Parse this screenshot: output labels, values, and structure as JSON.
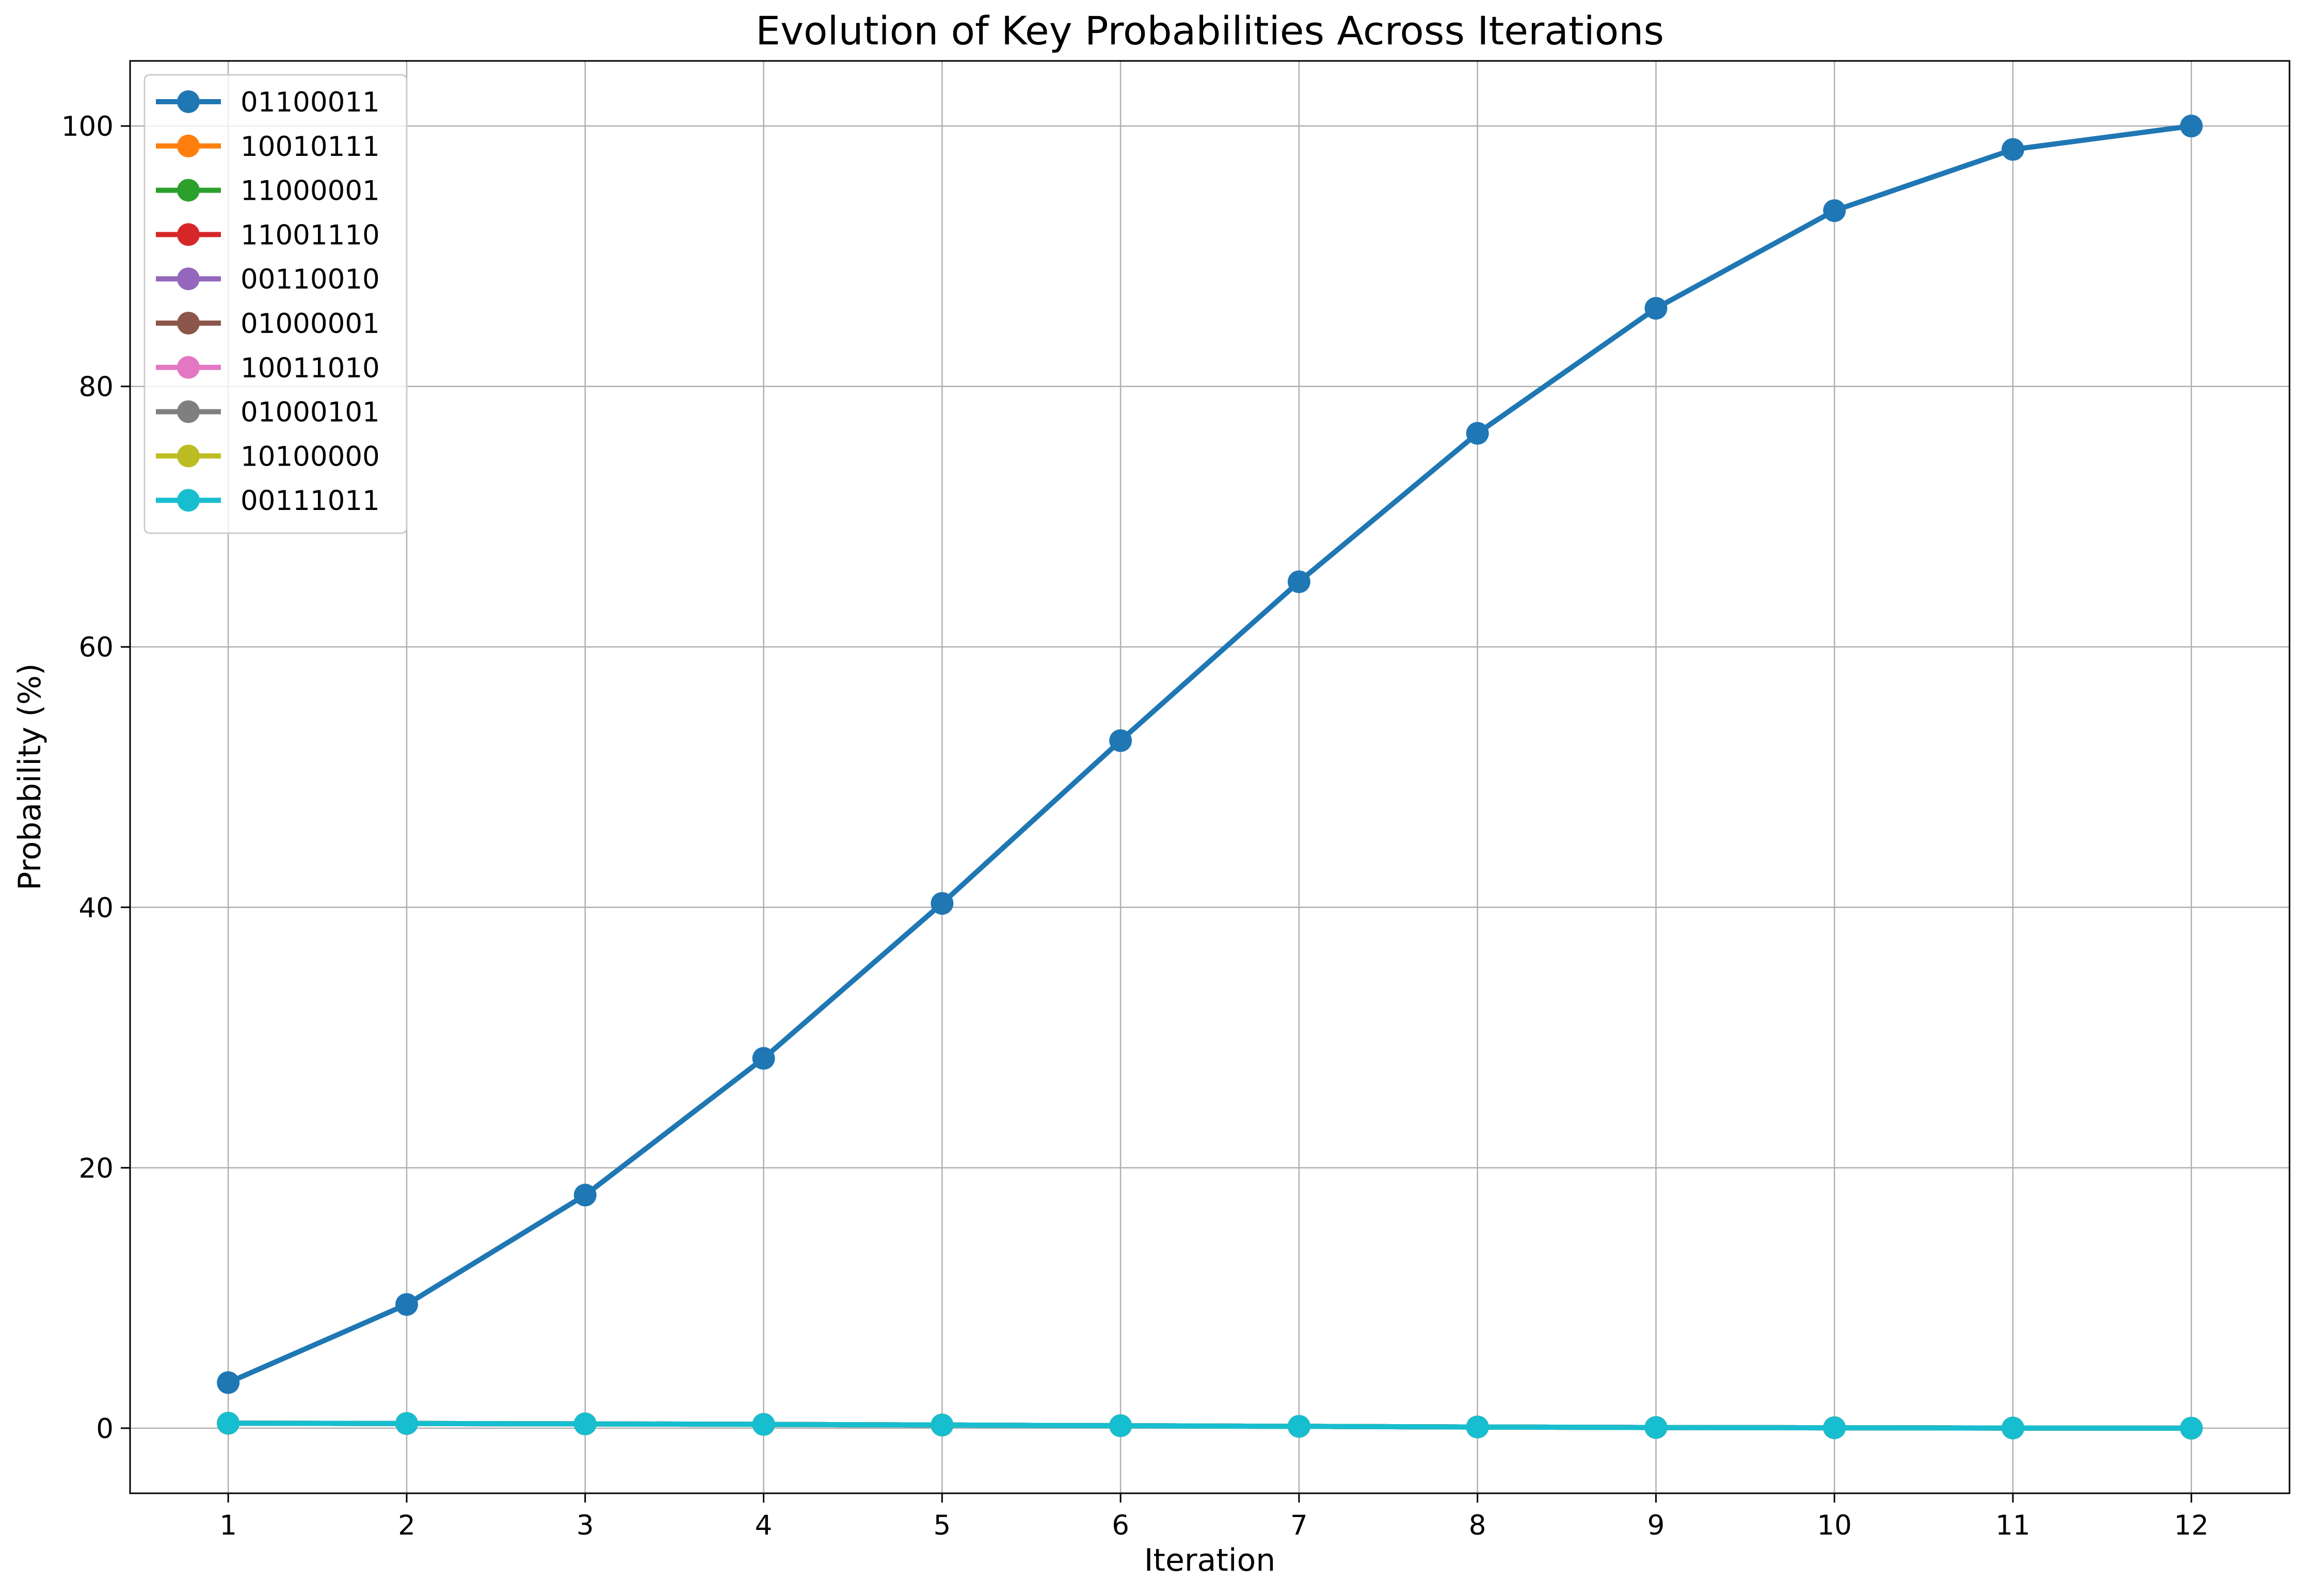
{
  "chart_data": {
    "type": "line",
    "title": "Evolution of Key Probabilities Across Iterations",
    "xlabel": "Iteration",
    "ylabel": "Probability (%)",
    "x": [
      1,
      2,
      3,
      4,
      5,
      6,
      7,
      8,
      9,
      10,
      11,
      12
    ],
    "xlim": [
      0.45,
      12.55
    ],
    "ylim": [
      -5,
      105
    ],
    "xticks": [
      1,
      2,
      3,
      4,
      5,
      6,
      7,
      8,
      9,
      10,
      11,
      12
    ],
    "yticks": [
      0,
      20,
      40,
      60,
      80,
      100
    ],
    "grid": true,
    "legend_position": "top-left",
    "series": [
      {
        "name": "01100011",
        "color": "#1f77b4",
        "values": [
          3.5,
          9.5,
          17.9,
          28.4,
          40.3,
          52.8,
          65.0,
          76.4,
          86.0,
          93.5,
          98.2,
          100.0
        ]
      },
      {
        "name": "10010111",
        "color": "#ff7f0e",
        "values": [
          0.38,
          0.36,
          0.33,
          0.29,
          0.24,
          0.19,
          0.14,
          0.09,
          0.05,
          0.03,
          0.01,
          0.0
        ]
      },
      {
        "name": "11000001",
        "color": "#2ca02c",
        "values": [
          0.38,
          0.36,
          0.33,
          0.29,
          0.24,
          0.19,
          0.14,
          0.09,
          0.05,
          0.03,
          0.01,
          0.0
        ]
      },
      {
        "name": "11001110",
        "color": "#d62728",
        "values": [
          0.38,
          0.36,
          0.33,
          0.29,
          0.24,
          0.19,
          0.14,
          0.09,
          0.05,
          0.03,
          0.01,
          0.0
        ]
      },
      {
        "name": "00110010",
        "color": "#9467bd",
        "values": [
          0.38,
          0.36,
          0.33,
          0.29,
          0.24,
          0.19,
          0.14,
          0.09,
          0.05,
          0.03,
          0.01,
          0.0
        ]
      },
      {
        "name": "01000001",
        "color": "#8c564b",
        "values": [
          0.38,
          0.36,
          0.33,
          0.29,
          0.24,
          0.19,
          0.14,
          0.09,
          0.05,
          0.03,
          0.01,
          0.0
        ]
      },
      {
        "name": "10011010",
        "color": "#e377c2",
        "values": [
          0.38,
          0.36,
          0.33,
          0.29,
          0.24,
          0.19,
          0.14,
          0.09,
          0.05,
          0.03,
          0.01,
          0.0
        ]
      },
      {
        "name": "01000101",
        "color": "#7f7f7f",
        "values": [
          0.38,
          0.36,
          0.33,
          0.29,
          0.24,
          0.19,
          0.14,
          0.09,
          0.05,
          0.03,
          0.01,
          0.0
        ]
      },
      {
        "name": "10100000",
        "color": "#bcbd22",
        "values": [
          0.38,
          0.36,
          0.33,
          0.29,
          0.24,
          0.19,
          0.14,
          0.09,
          0.05,
          0.03,
          0.01,
          0.0
        ]
      },
      {
        "name": "00111011",
        "color": "#17becf",
        "values": [
          0.38,
          0.36,
          0.33,
          0.29,
          0.24,
          0.19,
          0.14,
          0.09,
          0.05,
          0.03,
          0.01,
          0.0
        ]
      }
    ]
  }
}
